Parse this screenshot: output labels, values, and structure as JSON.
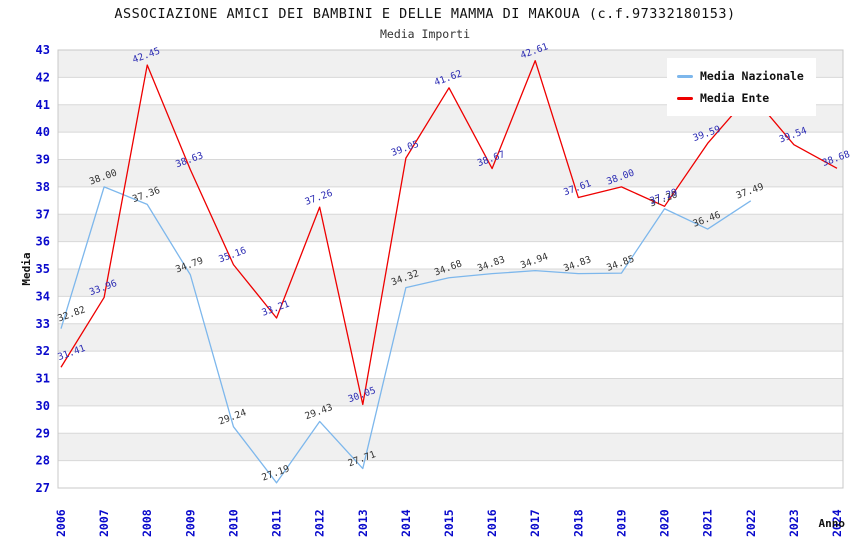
{
  "chart_data": {
    "type": "line",
    "title": "ASSOCIAZIONE AMICI DEI BAMBINI E DELLE MAMMA DI MAKOUA (c.f.97332180153)",
    "subtitle": "Media Importi",
    "xlabel": "Anno",
    "ylabel": "Media",
    "ylim": [
      27,
      43
    ],
    "y_ticks": [
      27,
      28,
      29,
      30,
      31,
      32,
      33,
      34,
      35,
      36,
      37,
      38,
      39,
      40,
      41,
      42,
      43
    ],
    "x": [
      "2006",
      "2007",
      "2008",
      "2009",
      "2010",
      "2011",
      "2012",
      "2013",
      "2014",
      "2015",
      "2016",
      "2017",
      "2018",
      "2019",
      "2020",
      "2021",
      "2022",
      "2023",
      "2024"
    ],
    "grid": true,
    "legend_position": "top-right",
    "band_colors": [
      "#f0f0f0",
      "#ffffff"
    ],
    "gridline_color": "#d8d8d8",
    "border_color": "#c8c8c8",
    "axis_tick_color": "#0a0acc",
    "series": [
      {
        "name": "Media Nazionale",
        "color": "#7db7ec",
        "label_color": "#333333",
        "values": [
          32.82,
          38.0,
          37.36,
          34.79,
          29.24,
          27.19,
          29.43,
          27.71,
          34.32,
          34.68,
          34.83,
          34.94,
          34.83,
          34.85,
          37.2,
          36.46,
          37.49,
          null,
          null
        ],
        "labels": [
          "32.82",
          "38.00",
          "37.36",
          "34.79",
          "29.24",
          "27.19",
          "29.43",
          "27.71",
          "34.32",
          "34.68",
          "34.83",
          "34.94",
          "34.83",
          "34.85",
          "37.20",
          "36.46",
          "37.49",
          null,
          null
        ]
      },
      {
        "name": "Media Ente",
        "color": "#ee0000",
        "label_color": "#2b2bb3",
        "values": [
          31.41,
          33.96,
          42.45,
          38.63,
          35.16,
          33.21,
          37.26,
          30.05,
          39.05,
          41.62,
          38.67,
          42.61,
          37.61,
          38.0,
          37.29,
          39.59,
          41.4,
          39.54,
          38.68
        ],
        "labels": [
          "31.41",
          "33.96",
          "42.45",
          "38.63",
          "35.16",
          "33.21",
          "37.26",
          "30.05",
          "39.05",
          "41.62",
          "38.67",
          "42.61",
          "37.61",
          "38.00",
          "37.29",
          "39.59",
          "",
          "39.54",
          "38.68"
        ]
      }
    ]
  }
}
